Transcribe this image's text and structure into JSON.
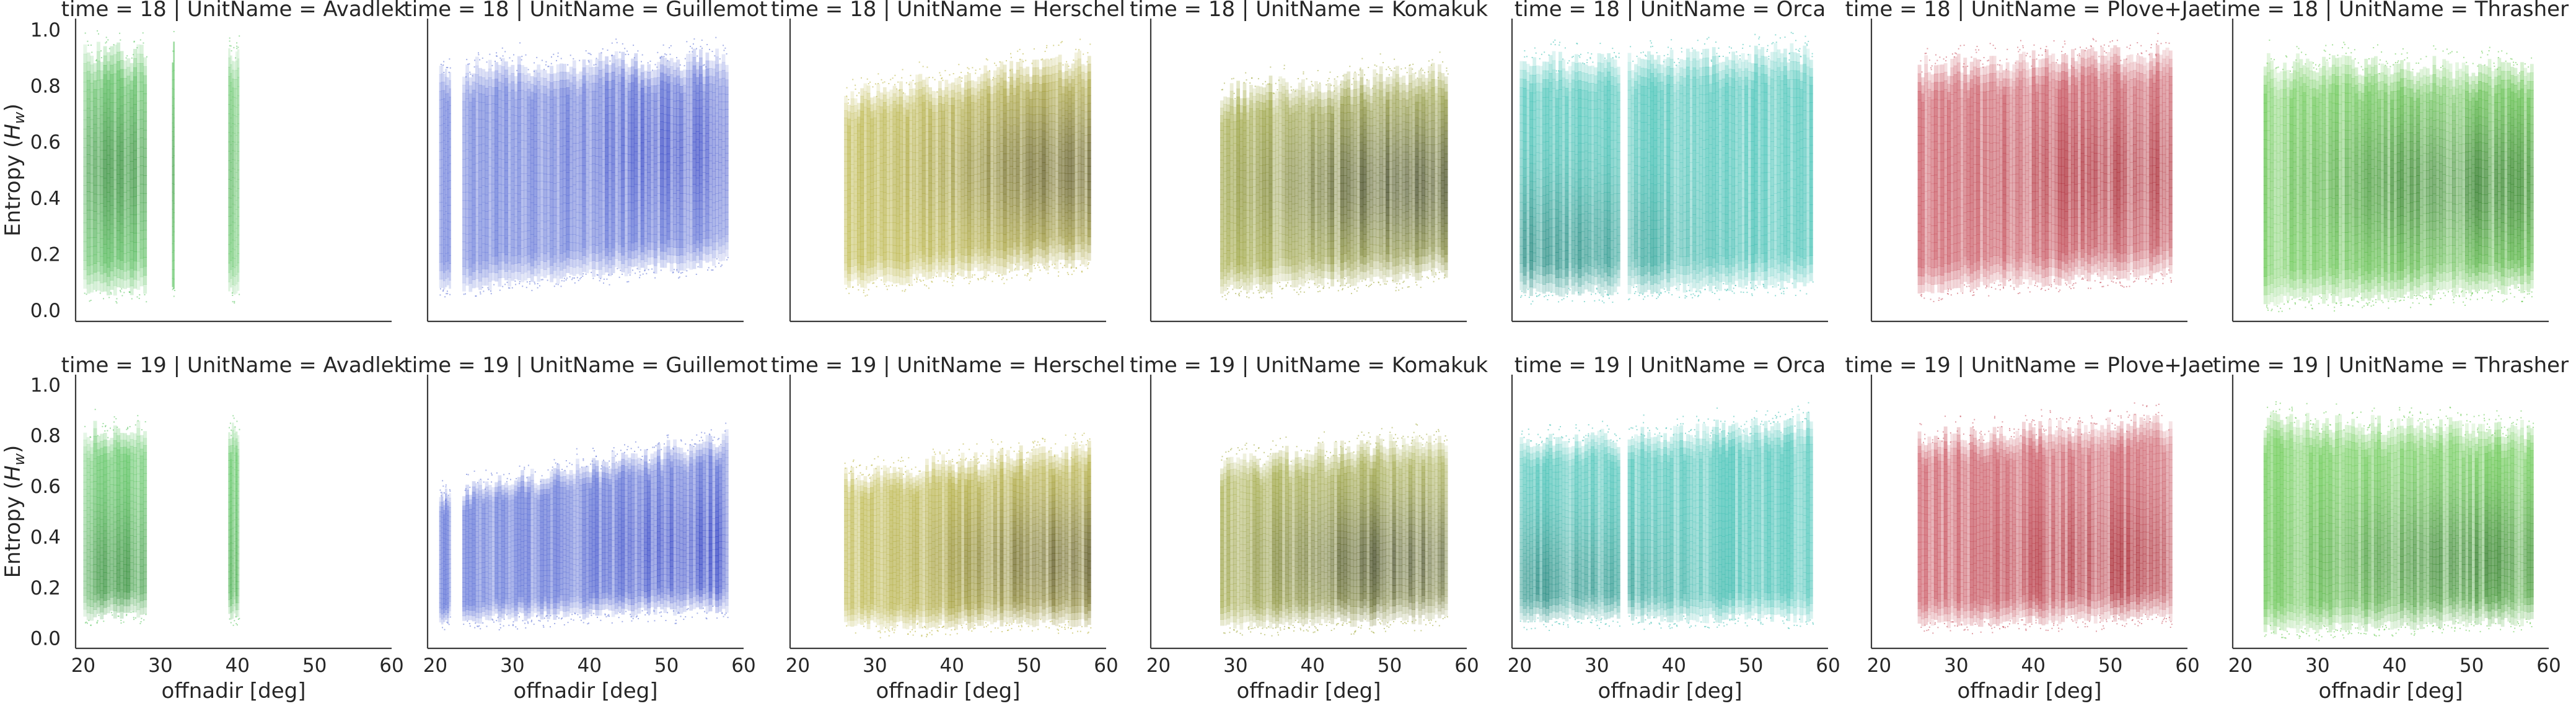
{
  "chart_data": {
    "type": "scatter",
    "layout": "facet-grid 2 rows x 7 columns",
    "row_variable": "time",
    "col_variable": "UnitName",
    "rows": [
      18,
      19
    ],
    "columns": [
      "Avadlek",
      "Guillemot",
      "Herschel",
      "Komakuk",
      "Orca",
      "Plove+Jae",
      "Thrasher"
    ],
    "title_template": "time = {row} | UnitName = {col}",
    "xlabel": "offnadir [deg]",
    "ylabel": "Entropy (H_w)",
    "ylabel_parts": {
      "prefix": "Entropy (",
      "symbol": "H",
      "subscript": "w",
      "suffix": ")"
    },
    "xlim": [
      19,
      60
    ],
    "ylim": [
      -0.04,
      1.04
    ],
    "xticks": [
      "20",
      "30",
      "40",
      "50",
      "60"
    ],
    "yticks": [
      "0.0",
      "0.2",
      "0.4",
      "0.6",
      "0.8",
      "1.0"
    ],
    "grid": false,
    "legend": "none",
    "colors": {
      "Avadlek": "#58c45d",
      "Guillemot": "#5b6fd6",
      "Herschel": "#b8b23a",
      "Komakuk": "#a0a83a",
      "Orca": "#3cc0b3",
      "Plove+Jae": "#c9505c",
      "Thrasher": "#62c94a"
    },
    "density_color_dark": {
      "Avadlek": "#2e8a34",
      "Guillemot": "#2233c0",
      "Herschel": "#4a4410",
      "Komakuk": "#2a3010",
      "Orca": "#0f7a70",
      "Plove+Jae": "#a01520",
      "Thrasher": "#1f6e18"
    },
    "panels": [
      {
        "time": 18,
        "unit": "Avadlek",
        "title": "time = 18 | UnitName = Avadlek",
        "segments": [
          [
            20.0,
            28.2
          ],
          [
            31.5,
            31.8
          ],
          [
            38.8,
            40.2
          ]
        ],
        "y_low": [
          0.07,
          0.07
        ],
        "y_high": [
          0.96,
          0.96
        ],
        "peak": {
          "x": 24,
          "y": 0.5
        }
      },
      {
        "time": 18,
        "unit": "Guillemot",
        "title": "time = 18 | UnitName = Guillemot",
        "segments": [
          [
            20.5,
            22.0
          ],
          [
            23.5,
            58.0
          ]
        ],
        "y_low": [
          0.07,
          0.18
        ],
        "y_high": [
          0.9,
          0.94
        ],
        "peak": {
          "x": 56,
          "y": 0.58
        }
      },
      {
        "time": 18,
        "unit": "Herschel",
        "title": "time = 18 | UnitName = Herschel",
        "segments": [
          [
            26.0,
            58.0
          ]
        ],
        "y_low": [
          0.07,
          0.18
        ],
        "y_high": [
          0.78,
          0.94
        ],
        "peak": {
          "x": 57,
          "y": 0.5
        }
      },
      {
        "time": 18,
        "unit": "Komakuk",
        "title": "time = 18 | UnitName = Komakuk",
        "segments": [
          [
            28.0,
            57.5
          ]
        ],
        "y_low": [
          0.05,
          0.14
        ],
        "y_high": [
          0.8,
          0.9
        ],
        "peak": {
          "x": 52,
          "y": 0.45
        }
      },
      {
        "time": 18,
        "unit": "Orca",
        "title": "time = 18 | UnitName = Orca",
        "segments": [
          [
            20.0,
            33.0
          ],
          [
            34.0,
            58.0
          ]
        ],
        "y_low": [
          0.06,
          0.1
        ],
        "y_high": [
          0.92,
          0.96
        ],
        "peak": {
          "x": 22,
          "y": 0.2
        }
      },
      {
        "time": 18,
        "unit": "Plove+Jae",
        "title": "time = 18 | UnitName = Plove+Jae",
        "segments": [
          [
            25.0,
            58.0
          ]
        ],
        "y_low": [
          0.06,
          0.14
        ],
        "y_high": [
          0.9,
          0.96
        ],
        "peak": {
          "x": 53,
          "y": 0.48
        }
      },
      {
        "time": 18,
        "unit": "Thrasher",
        "title": "time = 18 | UnitName = Thrasher",
        "segments": [
          [
            23.0,
            58.0
          ]
        ],
        "y_low": [
          0.03,
          0.08
        ],
        "y_high": [
          0.92,
          0.9
        ],
        "peak": {
          "x": 48,
          "y": 0.45
        }
      },
      {
        "time": 19,
        "unit": "Avadlek",
        "title": "time = 19 | UnitName = Avadlek",
        "segments": [
          [
            20.0,
            28.2
          ],
          [
            38.8,
            40.2
          ]
        ],
        "y_low": [
          0.09,
          0.09
        ],
        "y_high": [
          0.86,
          0.86
        ],
        "peak": {
          "x": 24,
          "y": 0.25
        }
      },
      {
        "time": 19,
        "unit": "Guillemot",
        "title": "time = 19 | UnitName = Guillemot",
        "segments": [
          [
            20.5,
            22.0
          ],
          [
            23.5,
            58.0
          ]
        ],
        "y_low": [
          0.07,
          0.12
        ],
        "y_high": [
          0.6,
          0.84
        ],
        "peak": {
          "x": 56,
          "y": 0.36
        }
      },
      {
        "time": 19,
        "unit": "Herschel",
        "title": "time = 19 | UnitName = Herschel",
        "segments": [
          [
            26.0,
            58.0
          ]
        ],
        "y_low": [
          0.05,
          0.06
        ],
        "y_high": [
          0.66,
          0.8
        ],
        "peak": {
          "x": 57,
          "y": 0.3
        }
      },
      {
        "time": 19,
        "unit": "Komakuk",
        "title": "time = 19 | UnitName = Komakuk",
        "segments": [
          [
            28.0,
            57.5
          ]
        ],
        "y_low": [
          0.04,
          0.08
        ],
        "y_high": [
          0.7,
          0.84
        ],
        "peak": {
          "x": 52,
          "y": 0.3
        }
      },
      {
        "time": 19,
        "unit": "Orca",
        "title": "time = 19 | UnitName = Orca",
        "segments": [
          [
            20.0,
            33.0
          ],
          [
            34.0,
            58.0
          ]
        ],
        "y_low": [
          0.08,
          0.08
        ],
        "y_high": [
          0.8,
          0.9
        ],
        "peak": {
          "x": 22,
          "y": 0.2
        }
      },
      {
        "time": 19,
        "unit": "Plove+Jae",
        "title": "time = 19 | UnitName = Plove+Jae",
        "segments": [
          [
            25.0,
            58.0
          ]
        ],
        "y_low": [
          0.05,
          0.09
        ],
        "y_high": [
          0.82,
          0.9
        ],
        "peak": {
          "x": 53,
          "y": 0.3
        }
      },
      {
        "time": 19,
        "unit": "Thrasher",
        "title": "time = 19 | UnitName = Thrasher",
        "segments": [
          [
            23.0,
            58.0
          ]
        ],
        "y_low": [
          0.03,
          0.07
        ],
        "y_high": [
          0.9,
          0.86
        ],
        "peak": {
          "x": 48,
          "y": 0.3
        }
      }
    ]
  }
}
